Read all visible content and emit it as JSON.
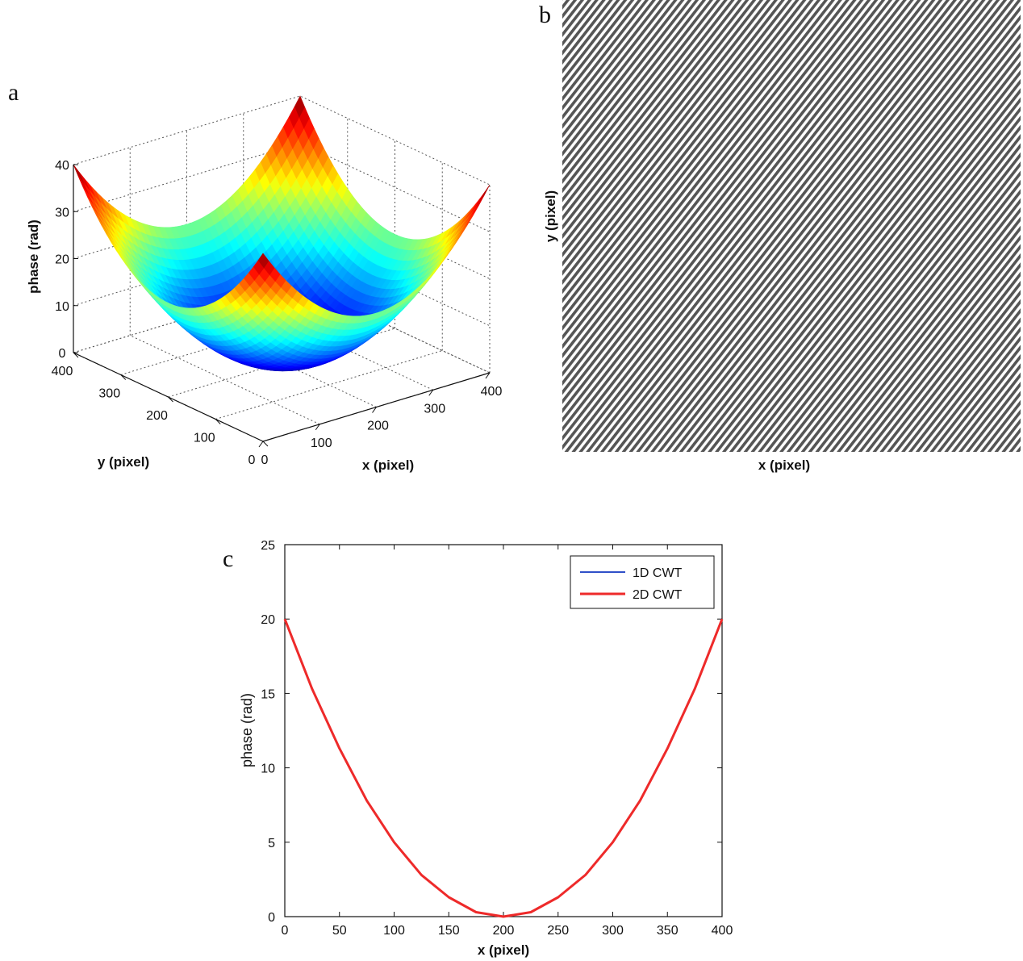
{
  "figure": {
    "panel_labels": [
      "a",
      "b",
      "c"
    ]
  },
  "chart_data": [
    {
      "panel": "a",
      "type": "surface",
      "zlabel": "phase (rad)",
      "xlabel": "x (pixel)",
      "ylabel": "y (pixel)",
      "xlim": [
        0,
        400
      ],
      "ylim": [
        0,
        400
      ],
      "zlim": [
        0,
        40
      ],
      "x_ticks": [
        0,
        100,
        200,
        300,
        400
      ],
      "y_ticks": [
        0,
        100,
        200,
        300,
        400
      ],
      "z_ticks": [
        0,
        10,
        20,
        30,
        40
      ],
      "surface": "paraboloid with minimum 0 at (200, 200) and corner value 40",
      "colormap": "jet",
      "grid": true
    },
    {
      "panel": "b",
      "type": "heatmap",
      "xlabel": "x (pixel)",
      "ylabel": "y (pixel)",
      "pattern": "diagonal fringe pattern",
      "colors": {
        "fringe": "#555555",
        "background": "#ffffff"
      }
    },
    {
      "panel": "c",
      "type": "line",
      "xlabel": "x (pixel)",
      "ylabel": "phase (rad)",
      "xlim": [
        0,
        400
      ],
      "ylim": [
        0,
        25
      ],
      "x_ticks": [
        0,
        50,
        100,
        150,
        200,
        250,
        300,
        350,
        400
      ],
      "y_ticks": [
        0,
        5,
        10,
        15,
        20,
        25
      ],
      "legend_position": "top-right",
      "x": [
        0,
        25,
        50,
        75,
        100,
        125,
        150,
        175,
        200,
        225,
        250,
        275,
        300,
        325,
        350,
        375,
        400
      ],
      "series": [
        {
          "name": "1D CWT",
          "color": "#3050c8",
          "values": [
            20,
            15.3,
            11.3,
            7.8,
            5.0,
            2.8,
            1.3,
            0.3,
            0,
            0.3,
            1.3,
            2.8,
            5.0,
            7.8,
            11.3,
            15.3,
            20
          ]
        },
        {
          "name": "2D CWT",
          "color": "#ee2a2a",
          "values": [
            20,
            15.3,
            11.3,
            7.8,
            5.0,
            2.8,
            1.3,
            0.3,
            0,
            0.3,
            1.3,
            2.8,
            5.0,
            7.8,
            11.3,
            15.3,
            20
          ]
        }
      ]
    }
  ]
}
